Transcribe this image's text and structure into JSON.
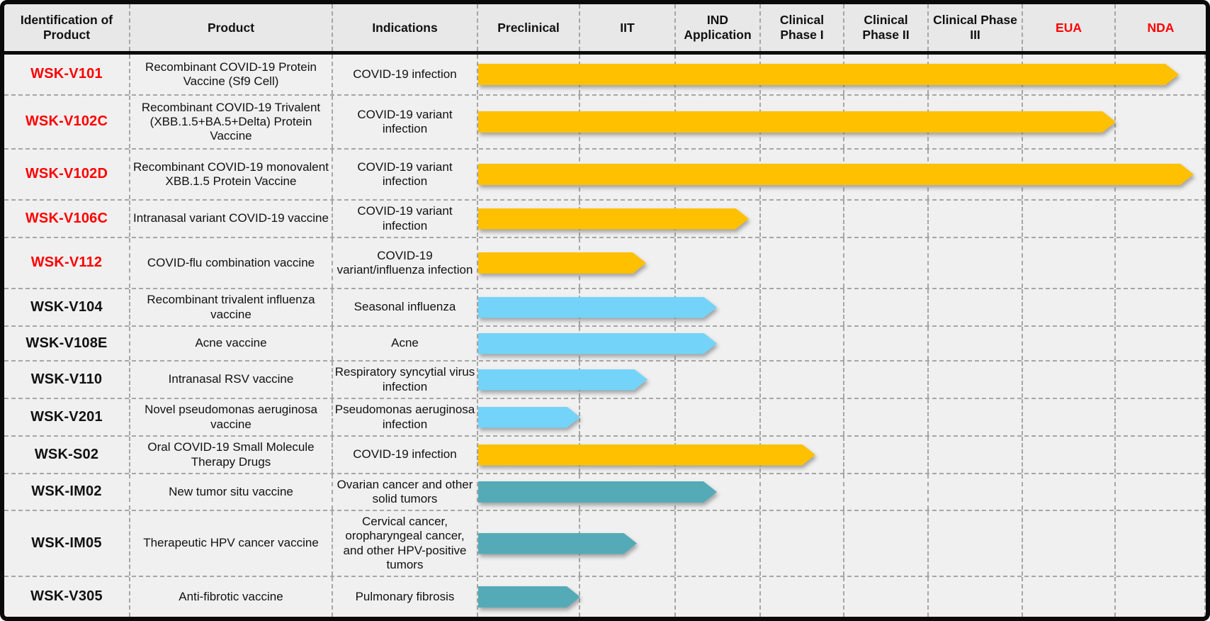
{
  "header": {
    "columns": [
      {
        "label": "Identification of Product",
        "color": "black"
      },
      {
        "label": "Product",
        "color": "black"
      },
      {
        "label": "Indications",
        "color": "black"
      },
      {
        "label": "Preclinical",
        "color": "black"
      },
      {
        "label": "IIT",
        "color": "black"
      },
      {
        "label": "IND Application",
        "color": "black"
      },
      {
        "label": "Clinical Phase I",
        "color": "black"
      },
      {
        "label": "Clinical Phase II",
        "color": "black"
      },
      {
        "label": "Clinical Phase III",
        "color": "black"
      },
      {
        "label": "EUA",
        "color": "red"
      },
      {
        "label": "NDA",
        "color": "red"
      }
    ]
  },
  "colors": {
    "gold": "#FFC000",
    "blue": "#74D3F8",
    "teal": "#54ABB7",
    "red": "#FF0000",
    "header_bg": "#E8E8E8",
    "body_bg": "#F0F0F0",
    "border_black": "#0a0a0a",
    "grid_dash": "#a6a6a6"
  },
  "chart_data": {
    "type": "bar",
    "title": "Product development pipeline",
    "stages": [
      "Preclinical",
      "IIT",
      "IND Application",
      "Clinical Phase I",
      "Clinical Phase II",
      "Clinical Phase III",
      "EUA",
      "NDA"
    ],
    "stage_scale_note": "end_stage units: 0 = start of Preclinical, 8 = end of NDA",
    "rows": [
      {
        "id": "WSK-V101",
        "id_color": "red",
        "product": "Recombinant COVID-19 Protein Vaccine (Sf9 Cell)",
        "indication": "COVID-19 infection",
        "color": "gold",
        "end_stage": 7.7,
        "current_stage": "NDA"
      },
      {
        "id": "WSK-V102C",
        "id_color": "red",
        "product": "Recombinant COVID-19 Trivalent (XBB.1.5+BA.5+Delta) Protein Vaccine",
        "indication": "COVID-19 variant infection",
        "color": "gold",
        "end_stage": 7.0,
        "current_stage": "EUA"
      },
      {
        "id": "WSK-V102D",
        "id_color": "red",
        "product": "Recombinant COVID-19 monovalent XBB.1.5 Protein Vaccine",
        "indication": "COVID-19 variant infection",
        "color": "gold",
        "end_stage": 7.87,
        "current_stage": "NDA"
      },
      {
        "id": "WSK-V106C",
        "id_color": "red",
        "product": "Intranasal variant COVID-19 vaccine",
        "indication": "COVID-19 variant infection",
        "color": "gold",
        "end_stage": 2.86,
        "current_stage": "IND Application"
      },
      {
        "id": "WSK-V112",
        "id_color": "red",
        "product": "COVID-flu combination vaccine",
        "indication": "COVID-19 variant/influenza infection",
        "color": "gold",
        "end_stage": 1.69,
        "current_stage": "IIT"
      },
      {
        "id": "WSK-V104",
        "id_color": "black",
        "product": "Recombinant trivalent influenza vaccine",
        "indication": "Seasonal influenza",
        "color": "blue",
        "end_stage": 2.48,
        "current_stage": "IND Application"
      },
      {
        "id": "WSK-V108E",
        "id_color": "black",
        "product": "Acne vaccine",
        "indication": "Acne",
        "color": "blue",
        "end_stage": 2.48,
        "current_stage": "IND Application"
      },
      {
        "id": "WSK-V110",
        "id_color": "black",
        "product": "Intranasal RSV vaccine",
        "indication": "Respiratory syncytial virus infection",
        "color": "blue",
        "end_stage": 1.7,
        "current_stage": "IIT"
      },
      {
        "id": "WSK-V201",
        "id_color": "black",
        "product": "Novel pseudomonas aeruginosa vaccine",
        "indication": "Pseudomonas aeruginosa infection",
        "color": "blue",
        "end_stage": 1.0,
        "current_stage": "Preclinical"
      },
      {
        "id": "WSK-S02",
        "id_color": "black",
        "product": "Oral COVID-19 Small Molecule Therapy Drugs",
        "indication": "COVID-19 infection",
        "color": "gold",
        "end_stage": 3.65,
        "current_stage": "Clinical Phase I"
      },
      {
        "id": "WSK-IM02",
        "id_color": "black",
        "product": "New tumor situ vaccine",
        "indication": "Ovarian cancer and other solid tumors",
        "color": "teal",
        "end_stage": 2.48,
        "current_stage": "IND Application"
      },
      {
        "id": "WSK-IM05",
        "id_color": "black",
        "product": "Therapeutic HPV cancer vaccine",
        "indication": "Cervical cancer, oropharyngeal cancer, and other HPV-positive tumors",
        "color": "teal",
        "end_stage": 1.59,
        "current_stage": "IIT"
      },
      {
        "id": "WSK-V305",
        "id_color": "black",
        "product": "Anti-fibrotic vaccine",
        "indication": "Pulmonary fibrosis",
        "color": "teal",
        "end_stage": 1.0,
        "current_stage": "Preclinical"
      }
    ]
  }
}
